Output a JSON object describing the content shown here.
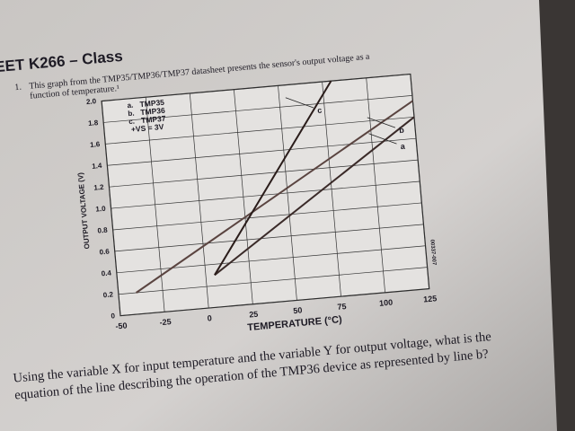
{
  "document": {
    "header": "EET K266 – Class",
    "question_number": "1.",
    "prompt_lines": [
      "This graph from the TMP35/TMP36/TMP37 datasheet presents the sensor's output voltage as a",
      "function of temperature.¹"
    ],
    "question_lines": [
      "Using the variable X for input temperature and the variable Y for output voltage, what is the",
      "equation of the line describing the operation of the TMP36 device as represented by line b?"
    ]
  },
  "chart_data": {
    "type": "line",
    "x_label": "TEMPERATURE (°C)",
    "y_label": "OUTPUT VOLTAGE (V)",
    "xlim": [
      -50,
      125
    ],
    "xticks": [
      -50,
      -25,
      0,
      25,
      50,
      75,
      100,
      125
    ],
    "ylim": [
      0,
      2.0
    ],
    "yticks": [
      0,
      0.2,
      0.4,
      0.6,
      0.8,
      {
        "value": 1.0,
        "label": "1.0"
      },
      1.2,
      1.4,
      1.6,
      1.8,
      {
        "value": 2.0,
        "label": "2.0"
      }
    ],
    "grid": true,
    "legend_keys": [
      "a.",
      "b.",
      "c."
    ],
    "legend_note": "+VS = 3V",
    "side_note": "00337-007",
    "series": [
      {
        "name": "TMP35",
        "label": "a",
        "color": "#3a2a28",
        "x": [
          5,
          125
        ],
        "values": [
          0.3,
          1.6
        ]
      },
      {
        "name": "TMP36",
        "label": "b",
        "color": "#5a4440",
        "x": [
          -40,
          125
        ],
        "values": [
          0.2,
          1.75
        ]
      },
      {
        "name": "TMP37",
        "label": "c",
        "color": "#2a1c1a",
        "x": [
          5,
          80
        ],
        "values": [
          0.3,
          2.0
        ]
      }
    ]
  }
}
